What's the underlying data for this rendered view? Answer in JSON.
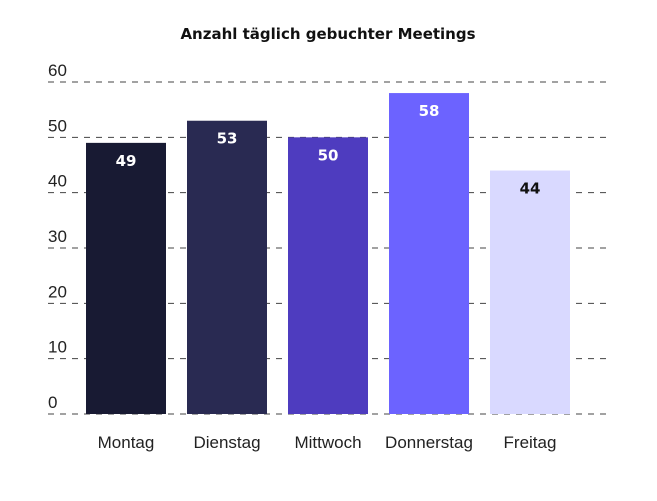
{
  "chart_data": {
    "type": "bar",
    "title": "Anzahl täglich gebuchter Meetings",
    "xlabel": "",
    "ylabel": "",
    "categories": [
      "Montag",
      "Dienstag",
      "Mittwoch",
      "Donnerstag",
      "Freitag"
    ],
    "values": [
      49,
      53,
      50,
      58,
      44
    ],
    "ylim": [
      0,
      60
    ],
    "yticks": [
      0,
      10,
      20,
      30,
      40,
      50,
      60
    ],
    "grid": true,
    "colors": [
      "#181a33",
      "#292a52",
      "#4e3cbf",
      "#6c63ff",
      "#d9d9ff"
    ],
    "label_colors": [
      "#ffffff",
      "#ffffff",
      "#ffffff",
      "#ffffff",
      "#111111"
    ]
  }
}
